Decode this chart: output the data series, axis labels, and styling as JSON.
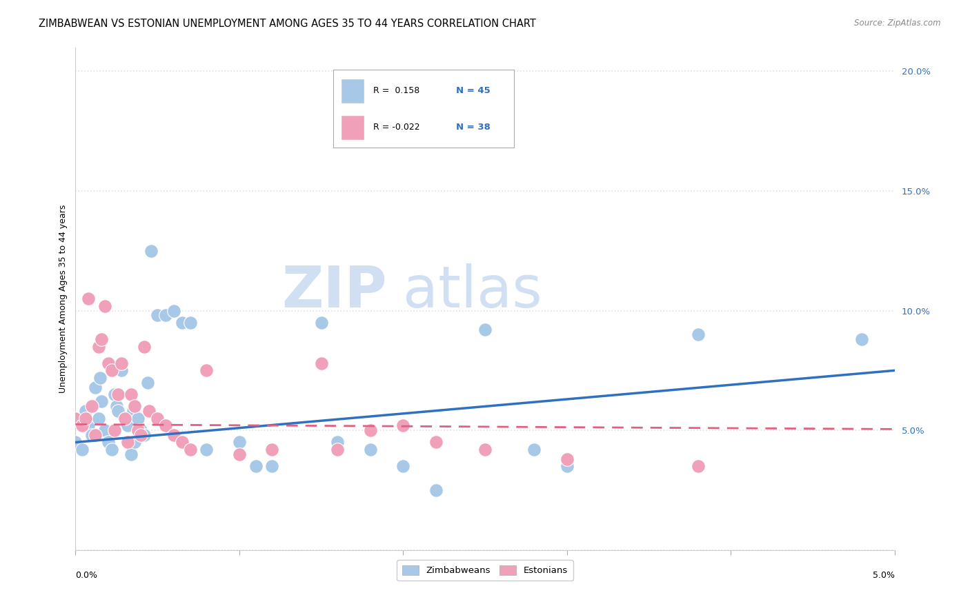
{
  "title": "ZIMBABWEAN VS ESTONIAN UNEMPLOYMENT AMONG AGES 35 TO 44 YEARS CORRELATION CHART",
  "source": "Source: ZipAtlas.com",
  "ylabel": "Unemployment Among Ages 35 to 44 years",
  "xlim": [
    0.0,
    5.0
  ],
  "ylim": [
    0.0,
    21.0
  ],
  "yticks": [
    0.0,
    5.0,
    10.0,
    15.0,
    20.0
  ],
  "ytick_labels": [
    "",
    "5.0%",
    "10.0%",
    "15.0%",
    "20.0%"
  ],
  "legend_r1": "R =  0.158",
  "legend_n1": "N = 45",
  "legend_r2": "R = -0.022",
  "legend_n2": "N = 38",
  "zimbabwe_color": "#a8c8e8",
  "estonia_color": "#f0a0b8",
  "zimbabwe_line_color": "#3070c0",
  "estonia_line_color": "#e06080",
  "watermark_zip_color": "#c8daf0",
  "watermark_atlas_color": "#c8daf0",
  "background_color": "#ffffff",
  "grid_color": "#e0e0e0",
  "title_fontsize": 10.5,
  "axis_label_fontsize": 9,
  "tick_label_fontsize": 9.5,
  "zimbabwe_x": [
    0.0,
    0.04,
    0.06,
    0.08,
    0.1,
    0.12,
    0.14,
    0.15,
    0.16,
    0.18,
    0.2,
    0.22,
    0.24,
    0.25,
    0.26,
    0.28,
    0.3,
    0.32,
    0.34,
    0.35,
    0.36,
    0.38,
    0.4,
    0.42,
    0.44,
    0.46,
    0.5,
    0.55,
    0.6,
    0.65,
    0.7,
    0.8,
    1.0,
    1.1,
    1.2,
    1.5,
    1.6,
    1.8,
    2.0,
    2.2,
    2.5,
    2.8,
    3.0,
    3.8,
    4.8
  ],
  "zimbabwe_y": [
    4.5,
    4.2,
    5.8,
    5.2,
    4.8,
    6.8,
    5.5,
    7.2,
    6.2,
    5.0,
    4.5,
    4.2,
    6.5,
    6.0,
    5.8,
    7.5,
    5.5,
    5.2,
    4.0,
    5.8,
    4.5,
    5.5,
    5.0,
    4.8,
    7.0,
    12.5,
    9.8,
    9.8,
    10.0,
    9.5,
    9.5,
    4.2,
    4.5,
    3.5,
    3.5,
    9.5,
    4.5,
    4.2,
    3.5,
    2.5,
    9.2,
    4.2,
    3.5,
    9.0,
    8.8
  ],
  "estonia_x": [
    0.0,
    0.04,
    0.06,
    0.08,
    0.1,
    0.12,
    0.14,
    0.16,
    0.18,
    0.2,
    0.22,
    0.24,
    0.26,
    0.28,
    0.3,
    0.32,
    0.34,
    0.36,
    0.38,
    0.4,
    0.42,
    0.45,
    0.5,
    0.55,
    0.6,
    0.65,
    0.7,
    0.8,
    1.0,
    1.2,
    1.5,
    1.6,
    1.8,
    2.0,
    2.2,
    2.5,
    3.0,
    3.8
  ],
  "estonia_y": [
    5.5,
    5.2,
    5.5,
    10.5,
    6.0,
    4.8,
    8.5,
    8.8,
    10.2,
    7.8,
    7.5,
    5.0,
    6.5,
    7.8,
    5.5,
    4.5,
    6.5,
    6.0,
    5.0,
    4.8,
    8.5,
    5.8,
    5.5,
    5.2,
    4.8,
    4.5,
    4.2,
    7.5,
    4.0,
    4.2,
    7.8,
    4.2,
    5.0,
    5.2,
    4.5,
    4.2,
    3.8,
    3.5
  ],
  "zim_regline_x": [
    0.0,
    5.0
  ],
  "zim_regline_y": [
    4.5,
    7.5
  ],
  "est_regline_x": [
    0.0,
    5.0
  ],
  "est_regline_y": [
    5.25,
    5.05
  ]
}
